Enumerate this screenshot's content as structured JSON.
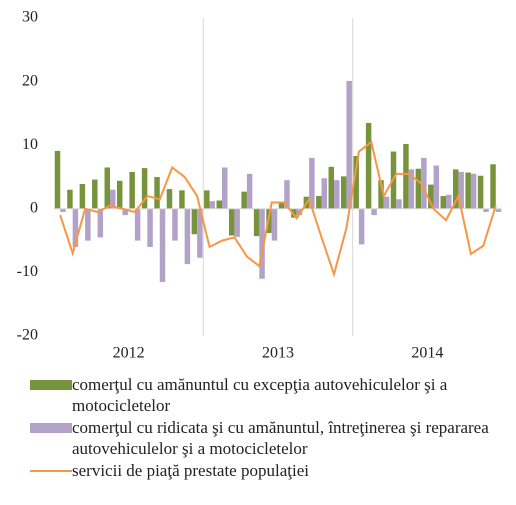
{
  "chart_data": {
    "type": "bar_line",
    "categories": [
      null,
      null,
      null,
      null,
      null,
      null,
      null,
      null,
      null,
      null,
      null,
      null,
      null,
      null,
      null,
      null,
      null,
      null,
      null,
      null,
      null,
      null,
      null,
      null,
      null,
      null,
      null,
      null,
      null,
      null,
      null,
      null,
      null,
      null,
      null,
      null
    ],
    "year_labels": [
      "2012",
      "2013",
      "2014"
    ],
    "ylim": [
      -20,
      30
    ],
    "yticks": [
      -20,
      -10,
      0,
      10,
      20,
      30
    ],
    "series": [
      {
        "name": "comerţul cu amănuntul cu excepţia autovehiculelor şi a motocicletelor",
        "color": "#77933c",
        "kind": "bar",
        "values": [
          9.1,
          3.0,
          3.9,
          4.6,
          6.5,
          4.4,
          5.8,
          6.4,
          5.0,
          3.1,
          2.9,
          -4.0,
          2.9,
          1.3,
          -4.2,
          2.7,
          -4.3,
          -3.8,
          1.0,
          -1.4,
          1.9,
          2.0,
          6.6,
          5.1,
          8.3,
          13.5,
          4.5,
          9.0,
          10.2,
          6.3,
          3.8,
          2.0,
          6.2,
          5.7,
          5.2,
          7.0
        ]
      },
      {
        "name": "comerţul cu ridicata şi cu amănuntul, întreţinerea şi repararea autovehiculelor şi a motocicletelor",
        "color": "#b3a2c7",
        "kind": "bar",
        "values": [
          -0.5,
          -6.0,
          -5.0,
          -4.5,
          3.0,
          -1.0,
          -5.0,
          -6.0,
          -11.5,
          -5.0,
          -8.7,
          -7.7,
          1.2,
          6.5,
          -4.4,
          5.5,
          -11.0,
          -5.0,
          4.5,
          -1.0,
          8.0,
          4.8,
          4.5,
          20.1,
          -5.6,
          -1.0,
          1.9,
          1.5,
          6.2,
          8.0,
          6.8,
          2.2,
          5.8,
          5.5,
          -0.5,
          -0.5
        ]
      },
      {
        "name": "servicii de piaţă prestate populaţiei",
        "color": "#f79646",
        "kind": "line",
        "values": [
          -1.0,
          -7.0,
          0.0,
          -0.5,
          0.5,
          0.0,
          -0.5,
          2.0,
          1.5,
          6.5,
          5.0,
          2.0,
          -6.0,
          -5.0,
          -4.5,
          -7.5,
          -9.0,
          1.0,
          1.0,
          -1.5,
          1.5,
          -4.5,
          -10.3,
          -3.0,
          9.0,
          10.5,
          2.0,
          5.5,
          5.5,
          4.0,
          0.0,
          -1.8,
          2.0,
          -7.1,
          -5.8,
          0.5
        ]
      }
    ]
  }
}
